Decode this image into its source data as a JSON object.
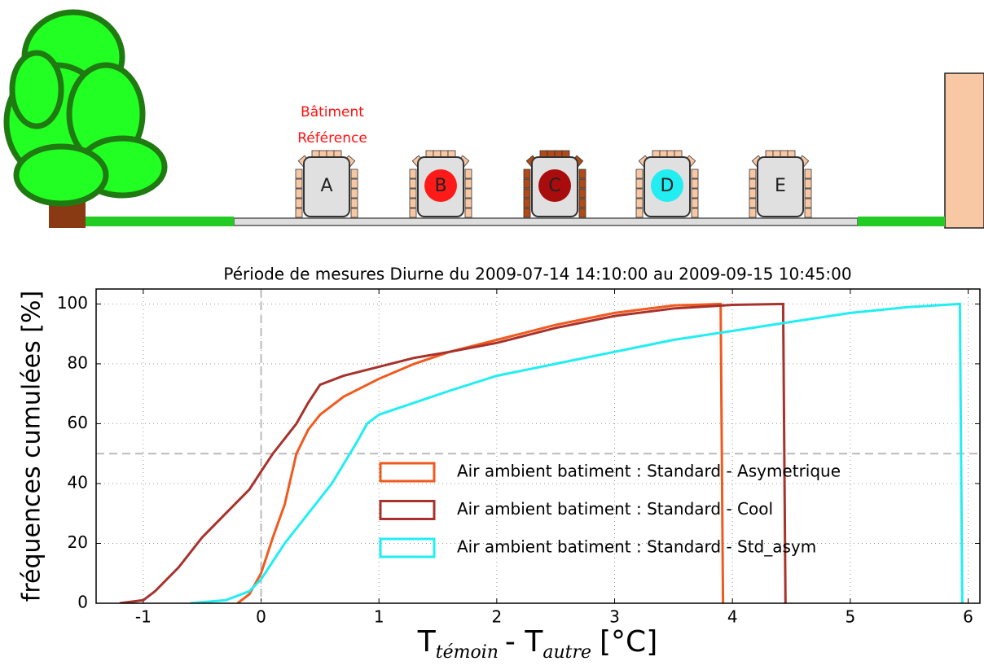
{
  "scene": {
    "label": [
      "Bâtiment",
      "Référence"
    ],
    "buildings": [
      "A",
      "B",
      "C",
      "D",
      "E"
    ]
  },
  "chart_data": {
    "type": "line",
    "title": "Période de mesures Diurne du 2009-07-14 14:10:00 au 2009-09-15 10:45:00",
    "ylabel": "fréquences cumulées [%]",
    "xlabel": [
      "T",
      "témoin",
      "- T",
      "autre",
      "[°C]"
    ],
    "xlim": [
      -1.4,
      6.1
    ],
    "ylim": [
      0,
      105
    ],
    "xticks": [
      -1,
      0,
      1,
      2,
      3,
      4,
      5,
      6
    ],
    "yticks": [
      0,
      20,
      40,
      60,
      80,
      100
    ],
    "grid": true,
    "legend": "lower right",
    "reference_lines": {
      "x": 0,
      "y": 50
    },
    "series": [
      {
        "name": "Air ambient batiment : Standard - Asymetrique",
        "color": "#f05a1e",
        "x": [
          -0.2,
          -0.1,
          0,
          0.1,
          0.2,
          0.3,
          0.4,
          0.5,
          0.7,
          1.0,
          1.3,
          1.6,
          2,
          2.5,
          3,
          3.5,
          3.9,
          3.92
        ],
        "values": [
          0,
          3,
          10,
          22,
          33,
          50,
          58,
          63,
          69,
          75,
          80,
          84,
          88,
          93,
          97,
          99.5,
          100,
          0
        ]
      },
      {
        "name": "Air ambient batiment : Standard - Cool",
        "color": "#a8322c",
        "x": [
          -1.2,
          -1,
          -0.9,
          -0.7,
          -0.5,
          -0.3,
          -0.1,
          0,
          0.1,
          0.2,
          0.3,
          0.4,
          0.5,
          0.7,
          1,
          1.3,
          1.6,
          2,
          2.5,
          3,
          3.5,
          4,
          4.43,
          4.45
        ],
        "values": [
          0,
          1,
          4,
          12,
          22,
          30,
          38,
          44,
          50,
          55,
          60,
          67,
          73,
          76,
          79,
          82,
          84,
          87,
          92,
          96,
          98.5,
          99.7,
          100,
          0
        ]
      },
      {
        "name": "Air ambient batiment : Standard - Std_asym",
        "color": "#22eef2",
        "x": [
          -0.6,
          -0.3,
          -0.1,
          0,
          0.1,
          0.2,
          0.4,
          0.6,
          0.8,
          0.9,
          1.0,
          1.3,
          1.6,
          2,
          2.5,
          3,
          3.5,
          4,
          4.5,
          5,
          5.5,
          5.93,
          5.95
        ],
        "values": [
          0,
          1,
          4,
          8,
          14,
          20,
          30,
          40,
          53,
          60,
          63,
          67,
          71,
          76,
          80,
          84,
          88,
          91,
          94,
          97,
          99,
          100,
          0
        ]
      }
    ]
  }
}
